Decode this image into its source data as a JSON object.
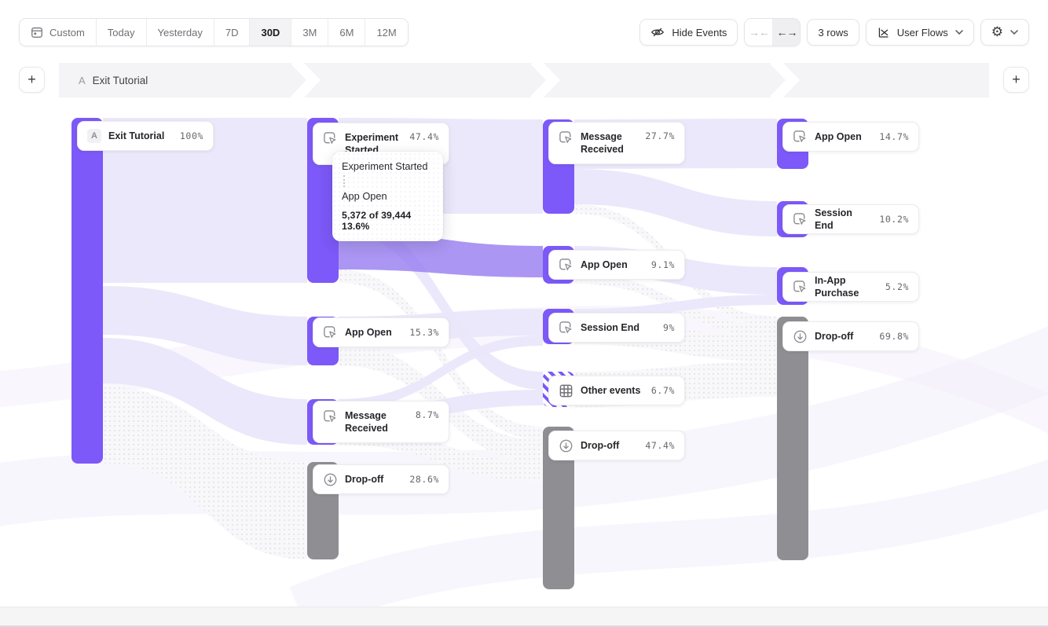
{
  "toolbar": {
    "date_ranges": [
      "Custom",
      "Today",
      "Yesterday",
      "7D",
      "30D",
      "3M",
      "6M",
      "12M"
    ],
    "selected_range": "30D",
    "hide_events": "Hide Events",
    "collapse_icon": "→←",
    "expand_icon": "←→",
    "rows": "3 rows",
    "view": "User Flows"
  },
  "breadcrumb": {
    "badge": "A",
    "label": "Exit Tutorial",
    "add_label": "+"
  },
  "tooltip": {
    "from": "Experiment Started",
    "to": "App Open",
    "stat": "5,372 of 39,444 13.6%"
  },
  "flow": {
    "nodes": [
      {
        "id": "exit",
        "column": 1,
        "label": "Exit Tutorial",
        "pct": "100%",
        "kind": "event",
        "badge": "A"
      },
      {
        "id": "exp",
        "column": 2,
        "label": "Experiment Started",
        "pct": "47.4%",
        "kind": "event"
      },
      {
        "id": "ao2",
        "column": 2,
        "label": "App Open",
        "pct": "15.3%",
        "kind": "event"
      },
      {
        "id": "mr2",
        "column": 2,
        "label": "Message Received",
        "pct": "8.7%",
        "kind": "event"
      },
      {
        "id": "do2",
        "column": 2,
        "label": "Drop-off",
        "pct": "28.6%",
        "kind": "dropoff"
      },
      {
        "id": "mr3",
        "column": 3,
        "label": "Message Received",
        "pct": "27.7%",
        "kind": "event"
      },
      {
        "id": "ao3",
        "column": 3,
        "label": "App Open",
        "pct": "9.1%",
        "kind": "event"
      },
      {
        "id": "se3",
        "column": 3,
        "label": "Session End",
        "pct": "9%",
        "kind": "event"
      },
      {
        "id": "oe3",
        "column": 3,
        "label": "Other events",
        "pct": "6.7%",
        "kind": "other"
      },
      {
        "id": "do3",
        "column": 3,
        "label": "Drop-off",
        "pct": "47.4%",
        "kind": "dropoff"
      },
      {
        "id": "ao4",
        "column": 4,
        "label": "App Open",
        "pct": "14.7%",
        "kind": "event"
      },
      {
        "id": "se4",
        "column": 4,
        "label": "Session End",
        "pct": "10.2%",
        "kind": "event"
      },
      {
        "id": "ip4",
        "column": 4,
        "label": "In-App Purchase",
        "pct": "5.2%",
        "kind": "event"
      },
      {
        "id": "do4",
        "column": 4,
        "label": "Drop-off",
        "pct": "69.8%",
        "kind": "dropoff"
      }
    ],
    "highlighted_link": {
      "from": "Experiment Started",
      "to": "App Open",
      "count": "5,372",
      "total": "39,444",
      "pct": "13.6%"
    }
  },
  "colors": {
    "accent": "#7C59F8",
    "dropoff_gray": "#8E8E93",
    "ribbon": "#EBE7FB",
    "ribbon_highlight": "#9478EF"
  }
}
